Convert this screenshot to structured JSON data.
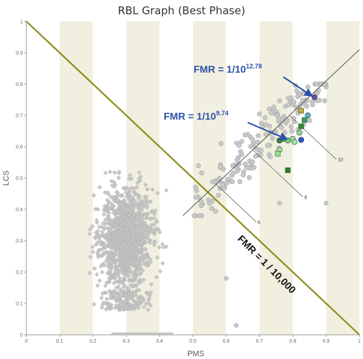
{
  "chart_data": {
    "type": "scatter",
    "title": "RBL Graph (Best Phase)",
    "xlabel": "PMS",
    "ylabel": "LCS",
    "xlim": [
      0,
      1
    ],
    "ylim": [
      0,
      1
    ],
    "x_ticks": [
      "0",
      "0.1",
      "0.2",
      "0.3",
      "0.4",
      "0.5",
      "0.6",
      "0.7",
      "0.8",
      "0.9",
      "1"
    ],
    "y_ticks": [
      "0",
      "0.1",
      "0.2",
      "0.3",
      "0.4",
      "0.5",
      "0.6",
      "0.7",
      "0.8",
      "0.9",
      "1"
    ],
    "grid": "vertical-bands",
    "clusters": [
      {
        "shape": "diamond",
        "color": "#c4c4c4",
        "stroke": "#a8a8a8",
        "x_range": [
          0.19,
          0.42
        ],
        "y_range": [
          0.08,
          0.52
        ],
        "center": [
          0.3,
          0.31
        ],
        "approx_count": 1400
      },
      {
        "shape": "circle",
        "color": "#c8c8c8",
        "stroke": "#9c9c9c",
        "x_range": [
          0.5,
          0.9
        ],
        "y_range": [
          0.38,
          0.8
        ],
        "trend_line": "y = x - 0.09",
        "approx_count": 170
      }
    ],
    "highlighted_points": [
      {
        "x": 0.865,
        "y": 0.758,
        "color": "#6a4ca8",
        "shape": "circle"
      },
      {
        "x": 0.825,
        "y": 0.715,
        "color": "#c8a838",
        "shape": "square"
      },
      {
        "x": 0.845,
        "y": 0.7,
        "color": "#4fb0b8",
        "shape": "circle"
      },
      {
        "x": 0.835,
        "y": 0.685,
        "color": "#30a060",
        "shape": "square"
      },
      {
        "x": 0.825,
        "y": 0.665,
        "color": "#2c8a2c",
        "shape": "square"
      },
      {
        "x": 0.82,
        "y": 0.645,
        "color": "#8ed88e",
        "shape": "circle"
      },
      {
        "x": 0.8,
        "y": 0.625,
        "color": "#a8e0a0",
        "shape": "circle"
      },
      {
        "x": 0.785,
        "y": 0.62,
        "color": "#7ad07a",
        "shape": "circle"
      },
      {
        "x": 0.805,
        "y": 0.615,
        "color": "#9de89d",
        "shape": "circle"
      },
      {
        "x": 0.77,
        "y": 0.625,
        "color": "#38b038",
        "shape": "square"
      },
      {
        "x": 0.825,
        "y": 0.622,
        "color": "#2a58c8",
        "shape": "circle"
      },
      {
        "x": 0.76,
        "y": 0.62,
        "color": "#2c8a2c",
        "shape": "circle"
      },
      {
        "x": 0.76,
        "y": 0.59,
        "color": "#a8e0a0",
        "shape": "circle"
      },
      {
        "x": 0.755,
        "y": 0.578,
        "color": "#8ee88e",
        "shape": "square"
      },
      {
        "x": 0.785,
        "y": 0.525,
        "color": "#2c7a2c",
        "shape": "square"
      }
    ],
    "threshold_line": {
      "from": [
        0,
        1
      ],
      "to": [
        1,
        0
      ],
      "color": "#8c8c18",
      "label": "FMR = 1 / 10,000"
    },
    "reference_line": {
      "from": [
        0.47,
        0.38
      ],
      "to": [
        1,
        0.91
      ],
      "color": "#555555"
    },
    "ticks_on_reference": [
      {
        "label": "6",
        "from": [
          0.57,
          0.48
        ],
        "to": [
          0.69,
          0.36
        ]
      },
      {
        "label": "8",
        "from": [
          0.68,
          0.59
        ],
        "to": [
          0.83,
          0.44
        ]
      },
      {
        "label": "10",
        "from": [
          0.79,
          0.7
        ],
        "to": [
          0.93,
          0.56
        ]
      }
    ],
    "annotations": [
      {
        "text": "FMR = 1/10",
        "exp": "12.78",
        "point": [
          0.863,
          0.758
        ]
      },
      {
        "text": "FMR = 1/10",
        "exp": "9.74",
        "point": [
          0.79,
          0.62
        ]
      }
    ]
  }
}
